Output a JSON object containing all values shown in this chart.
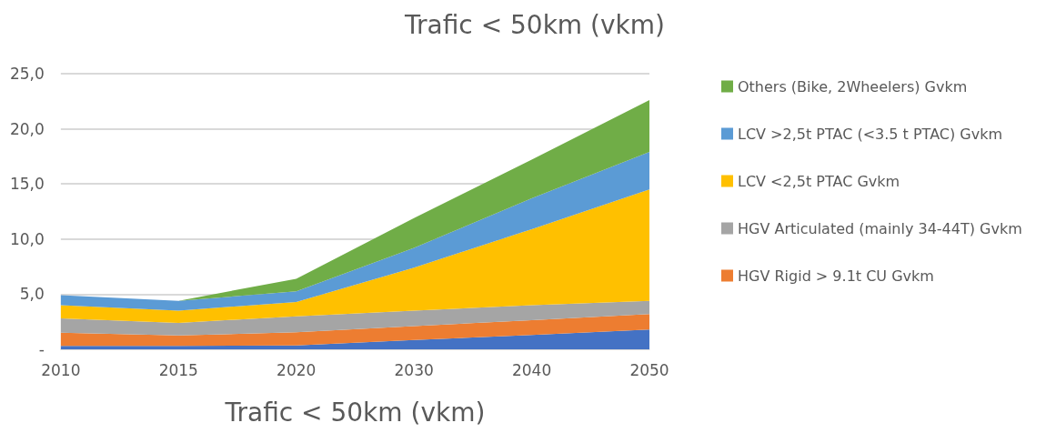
{
  "chart_data": {
    "type": "area",
    "title": "Trafic < 50km (vkm)",
    "xlabel": "Trafic < 50km (vkm)",
    "stacked": true,
    "categories": [
      "2010",
      "2015",
      "2020",
      "2030",
      "2040",
      "2050"
    ],
    "series": [
      {
        "color": "#4472c4",
        "values": [
          0.3,
          0.3,
          0.35,
          0.85,
          1.3,
          1.8
        ]
      },
      {
        "name": "HGV Rigid > 9.1t CU Gvkm",
        "color": "#ed7d31",
        "values": [
          1.2,
          0.95,
          1.2,
          1.25,
          1.35,
          1.4
        ]
      },
      {
        "name": "HGV Articulated (mainly 34-44T) Gvkm",
        "color": "#a5a5a5",
        "values": [
          1.3,
          1.15,
          1.45,
          1.4,
          1.35,
          1.2
        ]
      },
      {
        "name": "LCV <2,5t PTAC Gvkm",
        "color": "#ffc000",
        "values": [
          1.2,
          1.1,
          1.3,
          3.9,
          6.9,
          10.1
        ]
      },
      {
        "name": "LCV >2,5t PTAC (<3.5 t PTAC) Gvkm",
        "color": "#5b9bd5",
        "values": [
          0.9,
          0.9,
          0.95,
          1.8,
          2.8,
          3.4
        ]
      },
      {
        "name": "Others (Bike, 2Wheelers) Gvkm",
        "color": "#70ad47",
        "values": [
          0,
          0,
          1.15,
          2.7,
          3.5,
          4.7
        ]
      }
    ],
    "ylim": [
      0,
      25
    ],
    "yticks": [
      {
        "value": 0,
        "label": "-"
      },
      {
        "value": 5,
        "label": "5,0"
      },
      {
        "value": 10,
        "label": "10,0"
      },
      {
        "value": 15,
        "label": "15,0"
      },
      {
        "value": 20,
        "label": "20,0"
      },
      {
        "value": 25,
        "label": "25,0"
      }
    ],
    "grid": "y",
    "legend": "right"
  }
}
